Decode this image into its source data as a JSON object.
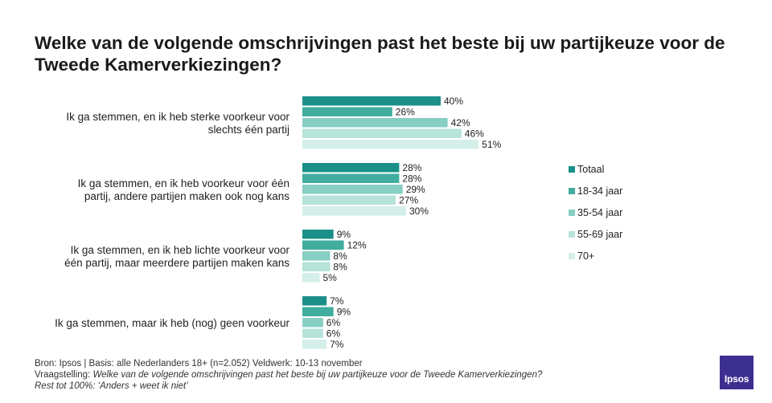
{
  "title": "Welke van de volgende omschrijvingen past het beste bij uw partijkeuze voor de Tweede Kamerverkiezingen?",
  "colors": {
    "Totaal": "#1a9088",
    "18-34 jaar": "#40ad9f",
    "35-54 jaar": "#86cfc2",
    "55-69 jaar": "#b6e3da",
    "70+": "#d4efe9"
  },
  "chart_data": {
    "type": "bar",
    "orientation": "horizontal",
    "categories": [
      [
        "Ik ga stemmen, en ik heb sterke voorkeur voor",
        "slechts één partij"
      ],
      [
        "Ik ga stemmen, en ik heb voorkeur voor één",
        "partij, andere partijen maken ook nog kans"
      ],
      [
        "Ik ga stemmen, en ik heb lichte voorkeur voor",
        "één partij, maar meerdere partijen maken kans"
      ],
      [
        "Ik ga stemmen, maar ik heb (nog) geen voorkeur"
      ]
    ],
    "series": [
      {
        "name": "Totaal",
        "values": [
          40,
          28,
          9,
          7
        ]
      },
      {
        "name": "18-34 jaar",
        "values": [
          26,
          28,
          12,
          9
        ]
      },
      {
        "name": "35-54 jaar",
        "values": [
          42,
          29,
          8,
          6
        ]
      },
      {
        "name": "55-69 jaar",
        "values": [
          46,
          27,
          8,
          6
        ]
      },
      {
        "name": "70+",
        "values": [
          51,
          30,
          5,
          7
        ]
      }
    ],
    "value_suffix": "%",
    "xlim": [
      0,
      100
    ],
    "legend_position": "right"
  },
  "footnote": {
    "line1": "Bron: Ipsos | Basis: alle Nederlanders  18+ (n=2.052)  Veldwerk:  10-13  november",
    "line2_label": "Vraagstelling: ",
    "line2_text": "Welke van de volgende  omschrijvingen  past het beste bij uw  partijkeuze voor de  Tweede  Kamerverkiezingen?",
    "line3": "Rest tot 100%: ‘Anders + weet ik niet’"
  },
  "logo_text": "Ipsos"
}
